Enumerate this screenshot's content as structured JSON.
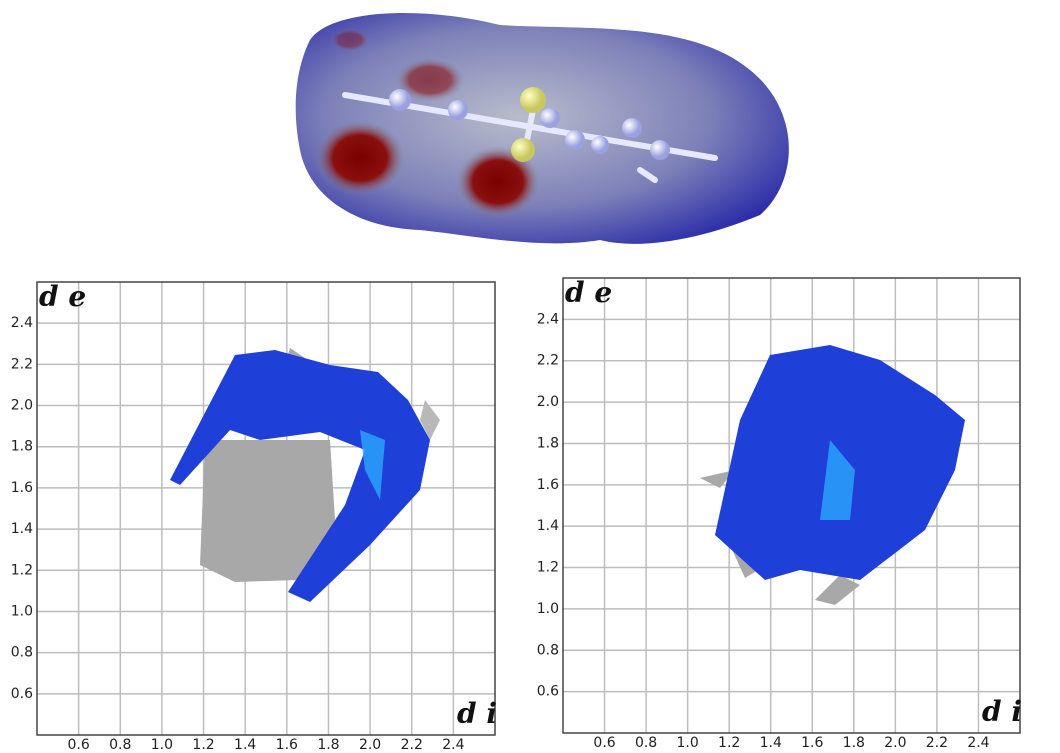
{
  "chart_data": [
    {
      "type": "fingerprint",
      "xlabel": "d i",
      "ylabel": "d e",
      "xlim": [
        0.4,
        2.6
      ],
      "ylim": [
        0.4,
        2.6
      ],
      "xticks": [
        0.6,
        0.8,
        {
          "value": 1.0,
          "label": "1.0"
        },
        1.2,
        1.4,
        1.6,
        1.8,
        {
          "value": 2.0,
          "label": "2.0"
        },
        2.2,
        2.4
      ],
      "yticks": [
        0.6,
        0.8,
        {
          "value": 1.0,
          "label": "1.0"
        },
        1.2,
        1.4,
        1.6,
        1.8,
        {
          "value": 2.0,
          "label": "2.0"
        },
        2.2,
        2.4
      ],
      "grid": true
    },
    {
      "type": "fingerprint",
      "xlabel": "d i",
      "ylabel": "d e",
      "xlim": [
        0.4,
        2.6
      ],
      "ylim": [
        0.4,
        2.6
      ],
      "xticks": [
        0.6,
        0.8,
        {
          "value": 1.0,
          "label": "1.0"
        },
        1.2,
        1.4,
        1.6,
        1.8,
        {
          "value": 2.0,
          "label": "2.0"
        },
        2.2,
        2.4
      ],
      "yticks": [
        0.6,
        0.8,
        {
          "value": 1.0,
          "label": "1.0"
        },
        1.2,
        1.4,
        1.6,
        1.8,
        {
          "value": 2.0,
          "label": "2.0"
        },
        2.2,
        2.4
      ],
      "grid": true
    }
  ]
}
